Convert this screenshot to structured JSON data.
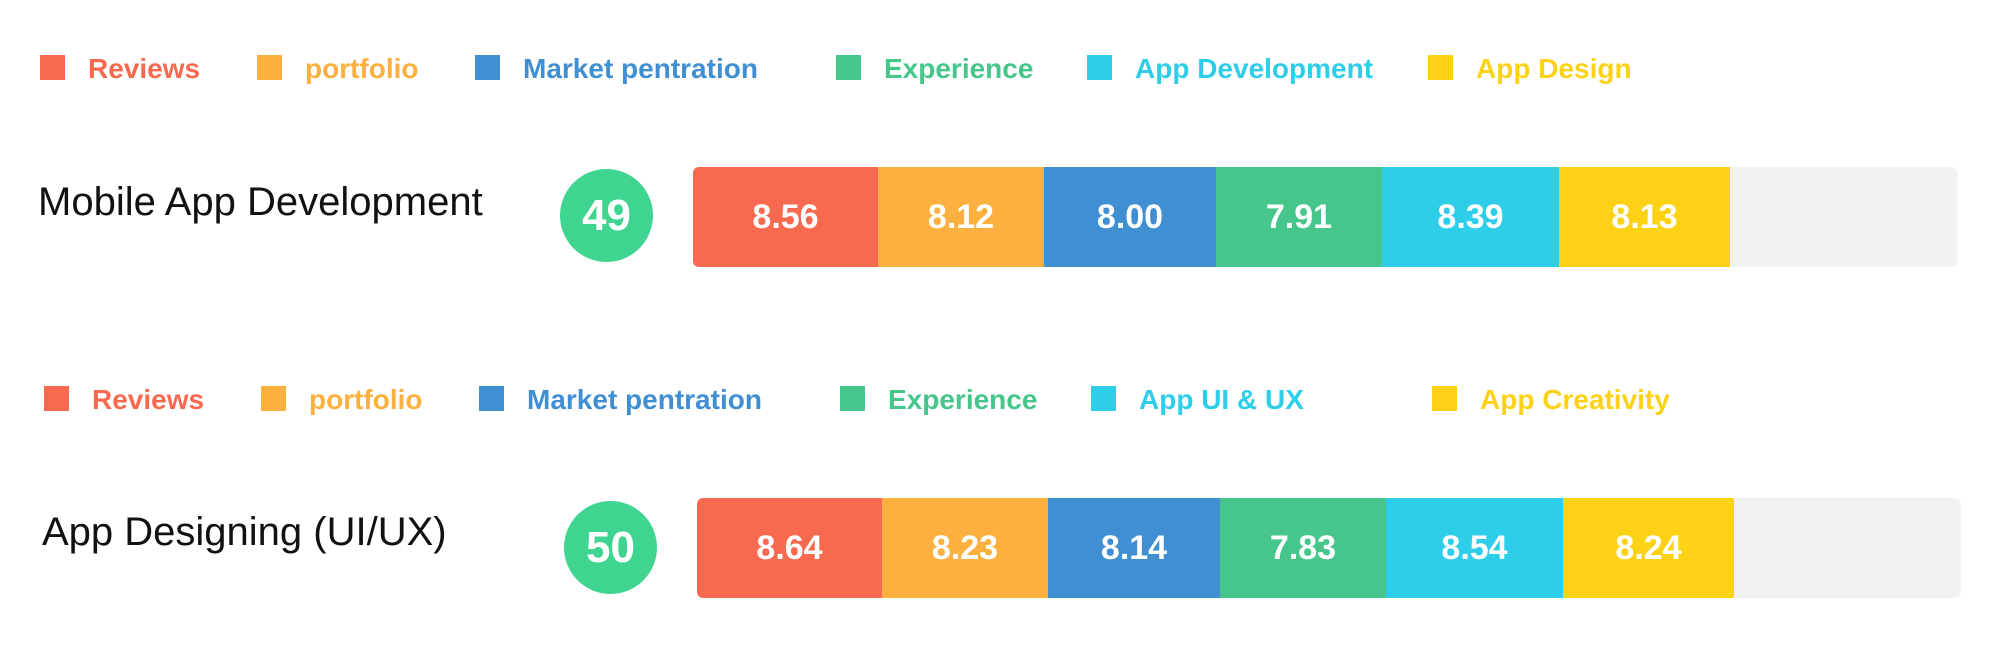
{
  "colors": {
    "reviews": "#f76a50",
    "portfolio": "#fbb040",
    "market": "#3f8fd2",
    "experience": "#46c68b",
    "app_dev": "#2ecdea",
    "app_design": "#fdd216",
    "track": "#f2f2f2",
    "score_circle": "#3fd48f"
  },
  "chart_data": [
    {
      "type": "bar",
      "stacked": true,
      "orientation": "horizontal",
      "title": "Mobile App Development",
      "score": "49",
      "legend_placement": "top",
      "series": [
        {
          "name": "Reviews",
          "value": 8.56,
          "label": "8.56",
          "color": "#f76a50"
        },
        {
          "name": "portfolio",
          "value": 8.12,
          "label": "8.12",
          "color": "#fbb040"
        },
        {
          "name": "Market pentration",
          "value": 8.0,
          "label": "8.00",
          "color": "#3f8fd2"
        },
        {
          "name": "Experience",
          "value": 7.91,
          "label": "7.91",
          "color": "#46c68b"
        },
        {
          "name": "App Development",
          "value": 8.39,
          "label": "8.39",
          "color": "#2ecdea"
        },
        {
          "name": "App Design",
          "value": 8.13,
          "label": "8.13",
          "color": "#fdd216"
        }
      ]
    },
    {
      "type": "bar",
      "stacked": true,
      "orientation": "horizontal",
      "title": "App Designing (UI/UX)",
      "score": "50",
      "legend_placement": "top",
      "series": [
        {
          "name": "Reviews",
          "value": 8.64,
          "label": "8.64",
          "color": "#f76a50"
        },
        {
          "name": "portfolio",
          "value": 8.23,
          "label": "8.23",
          "color": "#fbb040"
        },
        {
          "name": "Market pentration",
          "value": 8.14,
          "label": "8.14",
          "color": "#3f8fd2"
        },
        {
          "name": "Experience",
          "value": 7.83,
          "label": "7.83",
          "color": "#46c68b"
        },
        {
          "name": "App UI & UX",
          "value": 8.54,
          "label": "8.54",
          "color": "#2ecdea"
        },
        {
          "name": "App Creativity",
          "value": 8.24,
          "label": "8.24",
          "color": "#fdd216"
        }
      ]
    }
  ]
}
